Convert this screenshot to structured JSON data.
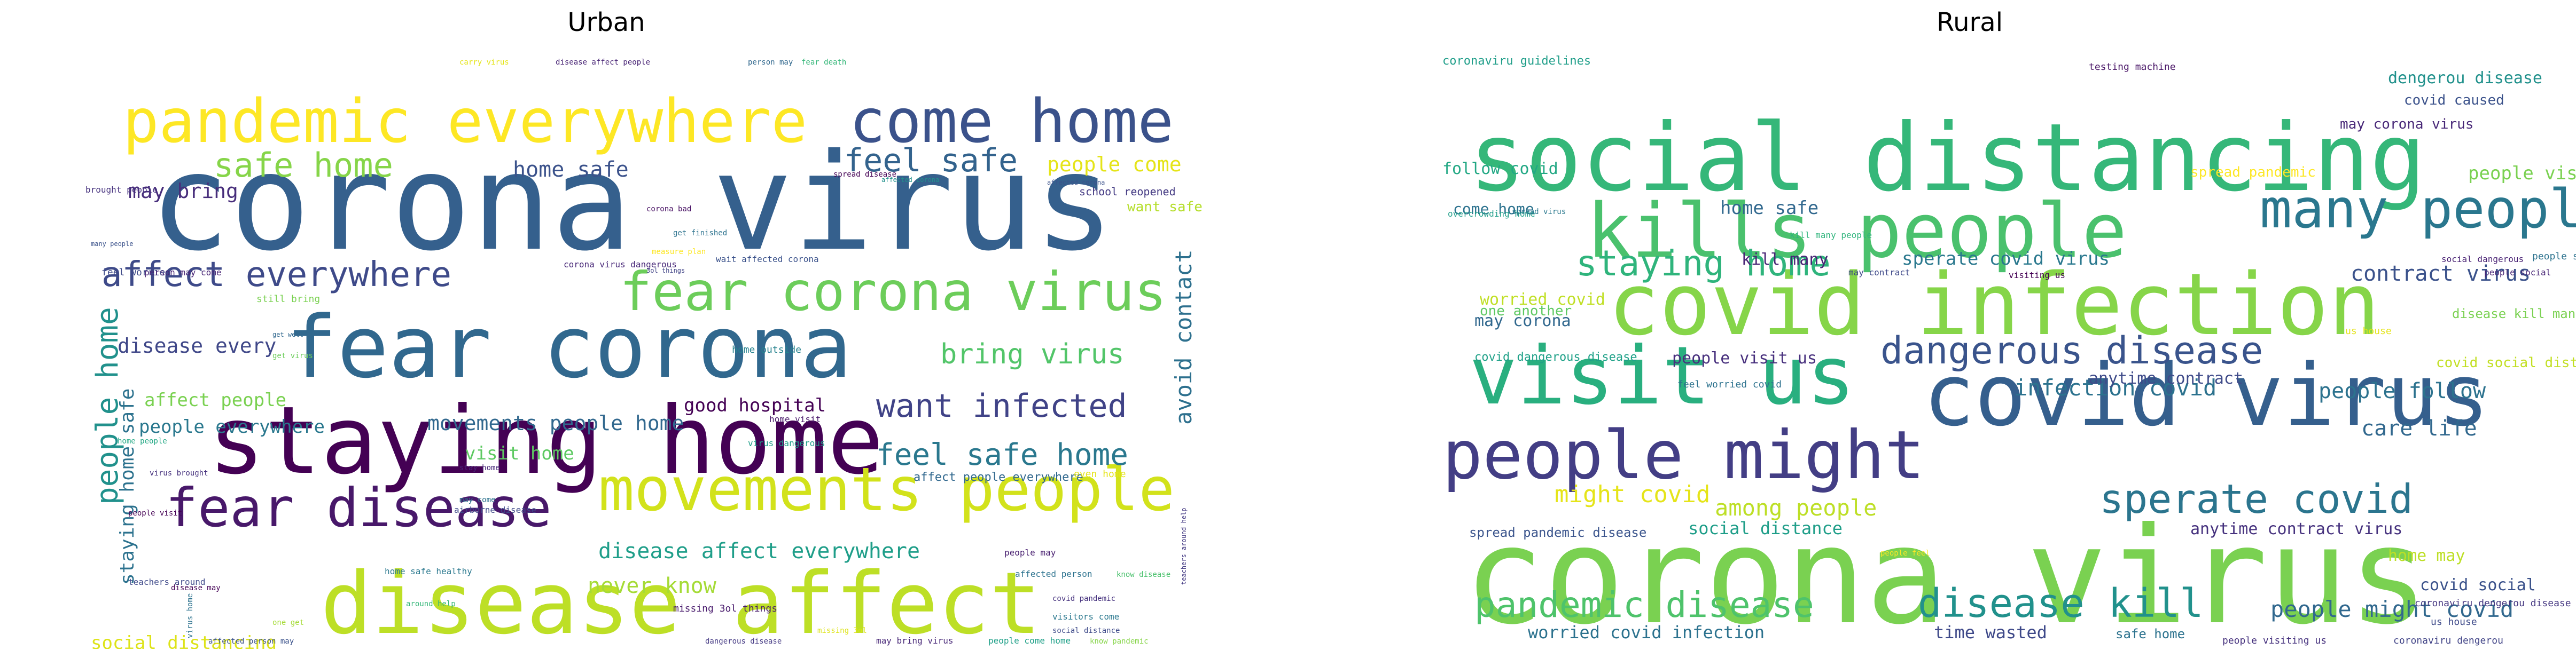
{
  "panels": [
    {
      "title": "Urban",
      "words": [
        {
          "t": "corona virus",
          "c": "#35608d"
        },
        {
          "t": "staying home",
          "c": "#440154"
        },
        {
          "t": "disease affect",
          "c": "#bddf26"
        },
        {
          "t": "pandemic everywhere",
          "c": "#fde725"
        },
        {
          "t": "fear corona",
          "c": "#31688e"
        },
        {
          "t": "come home",
          "c": "#3b528b"
        },
        {
          "t": "fear corona virus",
          "c": "#6ccd5a"
        },
        {
          "t": "movements people",
          "c": "#d2e21b"
        },
        {
          "t": "fear disease",
          "c": "#48186a"
        },
        {
          "t": "affect everywhere",
          "c": "#3e4a89"
        },
        {
          "t": "safe home",
          "c": "#86d549"
        },
        {
          "t": "feel safe",
          "c": "#33638d"
        },
        {
          "t": "want infected",
          "c": "#404387"
        },
        {
          "t": "feel safe home",
          "c": "#2a788e"
        },
        {
          "t": "bring virus",
          "c": "#52c569"
        },
        {
          "t": "people home",
          "c": "#21918c"
        },
        {
          "t": "avoid contact",
          "c": "#2d708e"
        },
        {
          "t": "may bring",
          "c": "#472d7b"
        },
        {
          "t": "people come",
          "c": "#e5e419"
        },
        {
          "t": "home safe",
          "c": "#3b528b"
        },
        {
          "t": "disease every",
          "c": "#3f4788"
        },
        {
          "t": "affect people",
          "c": "#7ad151"
        },
        {
          "t": "people everywhere",
          "c": "#2a788e"
        },
        {
          "t": "movements people home",
          "c": "#31688e"
        },
        {
          "t": "visit home",
          "c": "#5ec962"
        },
        {
          "t": "good hospital",
          "c": "#440154"
        },
        {
          "t": "staying home safe",
          "c": "#2c728e"
        },
        {
          "t": "disease affect everywhere",
          "c": "#1f9e89"
        },
        {
          "t": "never know",
          "c": "#a5db36"
        },
        {
          "t": "social distancing",
          "c": "#dde318"
        },
        {
          "t": "want safe",
          "c": "#b5de2b"
        },
        {
          "t": "school reopened",
          "c": "#443a83"
        },
        {
          "t": "brought people",
          "c": "#46327e"
        },
        {
          "t": "feel worried",
          "c": "#3e4a89"
        },
        {
          "t": "person may come",
          "c": "#482475"
        },
        {
          "t": "still bring",
          "c": "#7ad151"
        },
        {
          "t": "corona virus dangerous",
          "c": "#482878"
        },
        {
          "t": "wait affected corona",
          "c": "#3b528b"
        },
        {
          "t": "affect people everywhere",
          "c": "#31688e"
        },
        {
          "t": "even home",
          "c": "#e5e419"
        },
        {
          "t": "home outside",
          "c": "#26828e"
        },
        {
          "t": "virus dangerous",
          "c": "#1f9e89"
        },
        {
          "t": "home people",
          "c": "#22a884"
        },
        {
          "t": "people visit",
          "c": "#440154"
        },
        {
          "t": "home safe healthy",
          "c": "#2a788e"
        },
        {
          "t": "around help",
          "c": "#35b779"
        },
        {
          "t": "missing 3ol things",
          "c": "#481a6c"
        },
        {
          "t": "teachers around",
          "c": "#3e4989"
        },
        {
          "t": "disease may",
          "c": "#440154"
        },
        {
          "t": "covid pandemic",
          "c": "#46327e"
        },
        {
          "t": "visitors come",
          "c": "#2a788e"
        },
        {
          "t": "social distance",
          "c": "#3e4a89"
        },
        {
          "t": "dangerous disease",
          "c": "#443983"
        },
        {
          "t": "may bring virus",
          "c": "#482878"
        },
        {
          "t": "people come home",
          "c": "#1fa088"
        },
        {
          "t": "know pandemic",
          "c": "#86d549"
        },
        {
          "t": "affected person may",
          "c": "#3b528b"
        },
        {
          "t": "carry virus",
          "c": "#e5e419"
        },
        {
          "t": "disease affect people",
          "c": "#482475"
        },
        {
          "t": "person may",
          "c": "#31688e"
        },
        {
          "t": "fear death",
          "c": "#35b779"
        },
        {
          "t": "spread disease",
          "c": "#440154"
        },
        {
          "t": "affected corona",
          "c": "#21918c"
        },
        {
          "t": "affected corona",
          "c": "#3b528b"
        },
        {
          "t": "corona bad",
          "c": "#471063"
        },
        {
          "t": "get finished",
          "c": "#2c728e"
        },
        {
          "t": "measure plan",
          "c": "#fde725"
        },
        {
          "t": "3ol things",
          "c": "#414487"
        },
        {
          "t": "many people",
          "c": "#3b528b"
        },
        {
          "t": "get virus",
          "c": "#6ccd5a"
        },
        {
          "t": "get well",
          "c": "#31688e"
        },
        {
          "t": "stay home",
          "c": "#482878"
        },
        {
          "t": "may come",
          "c": "#2c728e"
        },
        {
          "t": "airborne disease",
          "c": "#3e4989"
        },
        {
          "t": "virus brought",
          "c": "#46327e"
        },
        {
          "t": "home visit",
          "c": "#48186a"
        },
        {
          "t": "people may",
          "c": "#481f70"
        },
        {
          "t": "affected person",
          "c": "#2c728e"
        },
        {
          "t": "know disease",
          "c": "#4ac16d"
        },
        {
          "t": "teachers around help",
          "c": "#443a83"
        },
        {
          "t": "virus home",
          "c": "#2c728e"
        },
        {
          "t": "one get",
          "c": "#a5db36"
        },
        {
          "t": "missing 3ol",
          "c": "#dde318"
        }
      ]
    },
    {
      "title": "Rural",
      "words": [
        {
          "t": "corona virus",
          "c": "#7ad151"
        },
        {
          "t": "social distancing",
          "c": "#35b779"
        },
        {
          "t": "covid infection",
          "c": "#86d549"
        },
        {
          "t": "kills people",
          "c": "#4ac16d"
        },
        {
          "t": "covid virus",
          "c": "#355f8d"
        },
        {
          "t": "visit us",
          "c": "#29af7f"
        },
        {
          "t": "people might",
          "c": "#433e85"
        },
        {
          "t": "many people",
          "c": "#2a778e"
        },
        {
          "t": "sperate covid",
          "c": "#2b758e"
        },
        {
          "t": "dangerous disease",
          "c": "#3a548c"
        },
        {
          "t": "staying home",
          "c": "#2fb47c"
        },
        {
          "t": "pandemic disease",
          "c": "#4ec36b"
        },
        {
          "t": "disease kill",
          "c": "#21918c"
        },
        {
          "t": "feel worried",
          "c": "#5ec962"
        },
        {
          "t": "people might covid",
          "c": "#31688e"
        },
        {
          "t": "might covid",
          "c": "#e5e419"
        },
        {
          "t": "among people",
          "c": "#bddf26"
        },
        {
          "t": "infection covid",
          "c": "#2c728e"
        },
        {
          "t": "contract virus",
          "c": "#3b528b"
        },
        {
          "t": "care life",
          "c": "#31688e"
        },
        {
          "t": "people follow",
          "c": "#2c728e"
        },
        {
          "t": "worried covid",
          "c": "#c0df25"
        },
        {
          "t": "may corona",
          "c": "#31688e"
        },
        {
          "t": "one another",
          "c": "#5ec962"
        },
        {
          "t": "kill many",
          "c": "#482475"
        },
        {
          "t": "sperate covid virus",
          "c": "#2a788e"
        },
        {
          "t": "people visit us",
          "c": "#472f7d"
        },
        {
          "t": "covid dangerous disease",
          "c": "#1fa188"
        },
        {
          "t": "anytime contract",
          "c": "#3e4a89"
        },
        {
          "t": "anytime contract virus",
          "c": "#46327e"
        },
        {
          "t": "spread pandemic disease",
          "c": "#3a548c"
        },
        {
          "t": "social distance",
          "c": "#1f9e89"
        },
        {
          "t": "worried covid infection",
          "c": "#2c728e"
        },
        {
          "t": "time wasted",
          "c": "#3e4989"
        },
        {
          "t": "safe home",
          "c": "#2c728e"
        },
        {
          "t": "people visiting us",
          "c": "#46327e"
        },
        {
          "t": "coronaviru guidelines",
          "c": "#1f9e89"
        },
        {
          "t": "dengerou disease",
          "c": "#21918c"
        },
        {
          "t": "covid caused",
          "c": "#3b528b"
        },
        {
          "t": "may corona virus",
          "c": "#482878"
        },
        {
          "t": "people visit",
          "c": "#7ad151"
        },
        {
          "t": "follow covid",
          "c": "#22a884"
        },
        {
          "t": "come home",
          "c": "#2c728e"
        },
        {
          "t": "home safe",
          "c": "#31688e"
        },
        {
          "t": "testing machine",
          "c": "#471365"
        },
        {
          "t": "spread pandemic",
          "c": "#fde725"
        },
        {
          "t": "covid social distancing",
          "c": "#c2df23"
        },
        {
          "t": "disease kill many",
          "c": "#7ad151"
        },
        {
          "t": "people social",
          "c": "#482575"
        },
        {
          "t": "home may",
          "c": "#bddf26"
        },
        {
          "t": "covid social",
          "c": "#3b528b"
        },
        {
          "t": "coronaviru dengerou disease",
          "c": "#453781"
        },
        {
          "t": "us house",
          "c": "#3e4a89"
        },
        {
          "t": "coronaviru dengerou",
          "c": "#414487"
        },
        {
          "t": "people feel",
          "c": "#fde725"
        },
        {
          "t": "feel worried covid",
          "c": "#2c728e"
        },
        {
          "t": "overcrowding home",
          "c": "#1f9e89"
        },
        {
          "t": "spread virus",
          "c": "#2a788e"
        },
        {
          "t": "kill many people",
          "c": "#2fb47c"
        },
        {
          "t": "may contract",
          "c": "#3e4989"
        },
        {
          "t": "visiting us",
          "c": "#440154"
        },
        {
          "t": "us house",
          "c": "#e5e419"
        },
        {
          "t": "social dangerous",
          "c": "#482173"
        },
        {
          "t": "people socializing",
          "c": "#2c728e"
        }
      ]
    }
  ]
}
